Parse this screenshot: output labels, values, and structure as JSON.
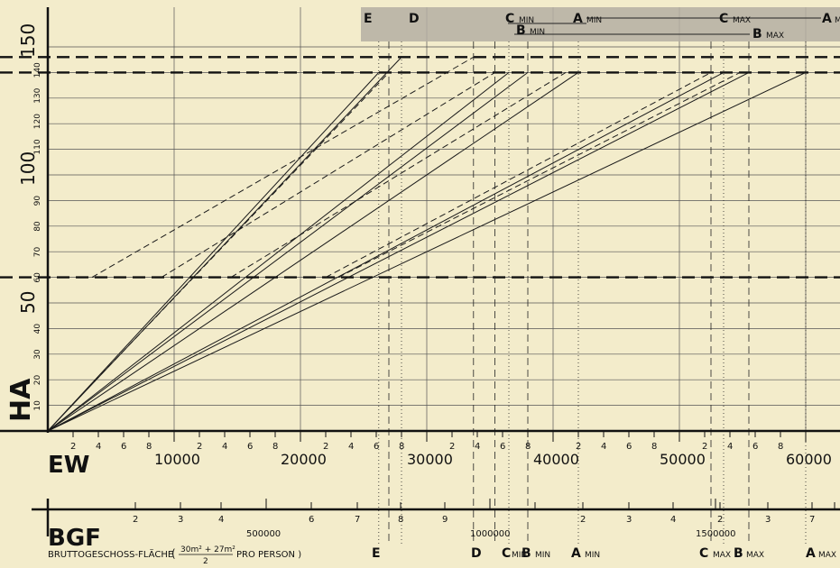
{
  "chart_data": {
    "type": "line",
    "y_axis": {
      "label": "HA",
      "major_ticks": [
        "50",
        "100",
        "150"
      ],
      "minor_ticks": [
        "10",
        "20",
        "30",
        "40",
        "60",
        "70",
        "80",
        "90",
        "110",
        "120",
        "130",
        "140"
      ],
      "range": [
        0,
        150
      ]
    },
    "x_axis": {
      "label": "EW",
      "major_ticks": [
        "10000",
        "20000",
        "30000",
        "40000",
        "50000",
        "60000"
      ],
      "minor_ticks": [
        "2",
        "4",
        "6",
        "8"
      ],
      "range": [
        0,
        60000
      ]
    },
    "bgf_axis": {
      "label": "BGF",
      "description": "BRUTTOGESCHOSS-FLÄCHE",
      "unit_left": "(",
      "frac_num": "30m² + 27m²",
      "frac_den": "2",
      "unit_right": "PRO PERSON )",
      "major_labels": [
        "500000",
        "1000000",
        "1500000"
      ],
      "minor_labels": [
        "2",
        "3",
        "4",
        "5",
        "6",
        "7",
        "8",
        "9",
        "2",
        "3",
        "4",
        "2",
        "3",
        "5",
        "6",
        "7"
      ]
    },
    "reference_levels_HA": [
      60,
      140,
      146
    ],
    "top_markers": [
      "E",
      "D",
      "C",
      "MIN",
      "B",
      "MIN",
      "A",
      "MIN",
      "C",
      "MAX",
      "B",
      "MAX",
      "A",
      "MIN"
    ],
    "bottom_markers": [
      "E",
      "D",
      "C",
      "MIN",
      "B",
      "MIN",
      "A",
      "MIN",
      "C",
      "MAX",
      "B",
      "MAX",
      "A",
      "MAX"
    ],
    "series": [
      {
        "values": [
          [
            0,
            0
          ],
          [
            26200,
            140
          ]
        ]
      },
      {
        "values": [
          [
            0,
            0
          ],
          [
            28000,
            146
          ]
        ]
      },
      {
        "values": [
          [
            0,
            0
          ],
          [
            36500,
            140
          ]
        ]
      },
      {
        "values": [
          [
            0,
            0
          ],
          [
            38000,
            140
          ]
        ]
      },
      {
        "values": [
          [
            0,
            0
          ],
          [
            42000,
            140
          ]
        ]
      },
      {
        "values": [
          [
            0,
            0
          ],
          [
            53500,
            140
          ]
        ]
      },
      {
        "values": [
          [
            0,
            0
          ],
          [
            55500,
            140
          ]
        ]
      },
      {
        "values": [
          [
            0,
            0
          ],
          [
            60000,
            140
          ]
        ]
      },
      {
        "values": [
          [
            1500,
            8
          ],
          [
            27000,
            140
          ]
        ]
      },
      {
        "values": [
          [
            3500,
            60
          ],
          [
            33700,
            146
          ]
        ]
      },
      {
        "values": [
          [
            9000,
            60
          ],
          [
            35400,
            140
          ]
        ]
      },
      {
        "values": [
          [
            14500,
            60
          ],
          [
            41000,
            140
          ]
        ]
      },
      {
        "values": [
          [
            22000,
            60
          ],
          [
            52500,
            140
          ]
        ]
      },
      {
        "values": [
          [
            23000,
            60
          ],
          [
            54800,
            140
          ]
        ]
      }
    ]
  }
}
